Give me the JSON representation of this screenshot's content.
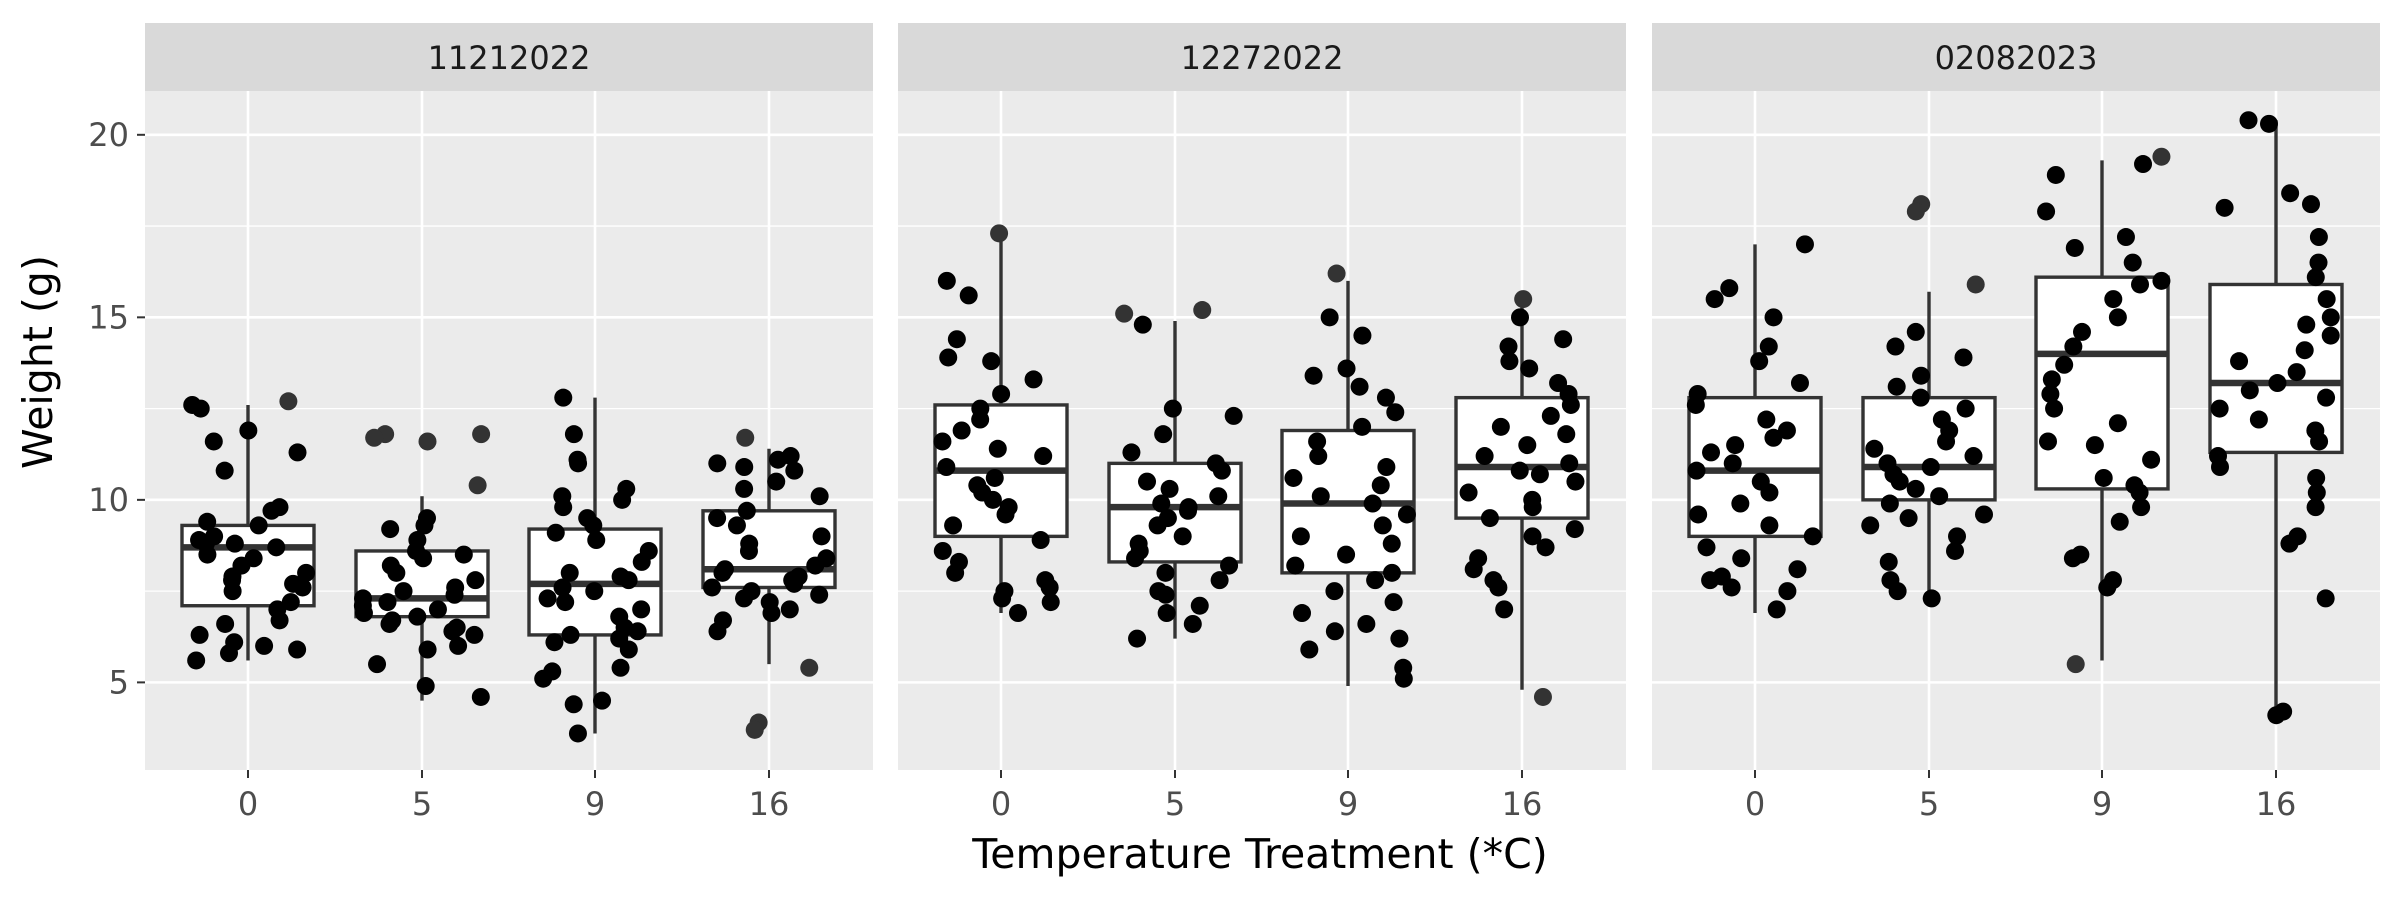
{
  "chart_data": {
    "type": "box",
    "xlabel": "Temperature Treatment (*C)",
    "ylabel": "Weight (g)",
    "ylim": [
      2.6,
      21.2
    ],
    "yticks": [
      5,
      10,
      15,
      20
    ],
    "categories": [
      "0",
      "5",
      "9",
      "16"
    ],
    "facets": [
      {
        "label": "11212022",
        "groups": [
          {
            "category": "0",
            "q1": 7.1,
            "median": 8.7,
            "q3": 9.3,
            "whisker_low": 5.6,
            "whisker_high": 12.6,
            "points": [
              12.7,
              12.6,
              12.5,
              11.9,
              11.6,
              11.3,
              10.8,
              9.8,
              9.7,
              9.4,
              9.3,
              9.0,
              8.9,
              8.8,
              8.8,
              8.7,
              8.5,
              8.4,
              8.2,
              8.0,
              7.9,
              7.8,
              7.7,
              7.6,
              7.5,
              7.2,
              7.0,
              6.7,
              6.6,
              6.3,
              6.1,
              6.0,
              5.9,
              5.8,
              5.6
            ]
          },
          {
            "category": "5",
            "q1": 6.8,
            "median": 7.3,
            "q3": 8.6,
            "whisker_low": 4.5,
            "whisker_high": 10.1,
            "points": [
              11.8,
              11.8,
              11.7,
              11.6,
              10.4,
              9.5,
              9.3,
              9.2,
              8.9,
              8.6,
              8.5,
              8.4,
              8.2,
              8.0,
              7.8,
              7.6,
              7.5,
              7.4,
              7.3,
              7.2,
              7.1,
              7.0,
              6.9,
              6.8,
              6.7,
              6.6,
              6.5,
              6.4,
              6.3,
              6.0,
              5.9,
              5.5,
              4.9,
              4.6
            ]
          },
          {
            "category": "9",
            "q1": 6.3,
            "median": 7.7,
            "q3": 9.2,
            "whisker_low": 3.6,
            "whisker_high": 12.8,
            "points": [
              12.8,
              11.8,
              11.1,
              11.0,
              10.3,
              10.1,
              10.0,
              9.8,
              9.5,
              9.3,
              9.1,
              8.9,
              8.6,
              8.3,
              8.0,
              7.9,
              7.8,
              7.6,
              7.5,
              7.3,
              7.2,
              7.0,
              6.8,
              6.5,
              6.4,
              6.3,
              6.2,
              6.1,
              5.9,
              5.4,
              5.3,
              5.1,
              4.5,
              4.4,
              3.6
            ]
          },
          {
            "category": "16",
            "q1": 7.6,
            "median": 8.1,
            "q3": 9.7,
            "whisker_low": 5.5,
            "whisker_high": 11.4,
            "points": [
              11.7,
              11.2,
              11.1,
              11.0,
              10.9,
              10.8,
              10.5,
              10.3,
              10.1,
              9.7,
              9.5,
              9.3,
              9.0,
              8.8,
              8.6,
              8.4,
              8.2,
              8.1,
              8.0,
              7.9,
              7.8,
              7.7,
              7.6,
              7.5,
              7.4,
              7.3,
              7.2,
              7.0,
              6.9,
              6.7,
              6.4,
              5.4,
              3.9,
              3.7
            ]
          }
        ]
      },
      {
        "label": "12272022",
        "groups": [
          {
            "category": "0",
            "q1": 9.0,
            "median": 10.8,
            "q3": 12.6,
            "whisker_low": 6.9,
            "whisker_high": 17.1,
            "points": [
              17.3,
              16.0,
              15.6,
              14.4,
              13.9,
              13.8,
              13.3,
              12.9,
              12.5,
              12.2,
              11.9,
              11.6,
              11.4,
              11.2,
              10.9,
              10.6,
              10.4,
              10.2,
              10.0,
              9.8,
              9.6,
              9.3,
              8.9,
              8.6,
              8.3,
              8.0,
              7.8,
              7.6,
              7.5,
              7.3,
              7.2,
              6.9
            ]
          },
          {
            "category": "5",
            "q1": 8.3,
            "median": 9.8,
            "q3": 11.0,
            "whisker_low": 6.2,
            "whisker_high": 14.9,
            "points": [
              15.2,
              15.1,
              14.8,
              12.5,
              12.3,
              11.8,
              11.3,
              11.0,
              10.8,
              10.5,
              10.3,
              10.1,
              9.9,
              9.8,
              9.7,
              9.5,
              9.3,
              9.0,
              8.8,
              8.6,
              8.4,
              8.2,
              8.0,
              7.8,
              7.5,
              7.4,
              7.1,
              6.9,
              6.6,
              6.2
            ]
          },
          {
            "category": "9",
            "q1": 8.0,
            "median": 9.9,
            "q3": 11.9,
            "whisker_low": 4.9,
            "whisker_high": 16.0,
            "points": [
              16.2,
              15.0,
              14.5,
              13.6,
              13.4,
              13.1,
              12.8,
              12.4,
              12.0,
              11.6,
              11.2,
              10.9,
              10.6,
              10.4,
              10.1,
              9.9,
              9.6,
              9.3,
              9.0,
              8.8,
              8.5,
              8.2,
              8.0,
              7.8,
              7.5,
              7.2,
              6.9,
              6.6,
              6.4,
              6.2,
              5.9,
              5.4,
              5.1
            ]
          },
          {
            "category": "16",
            "q1": 9.5,
            "median": 10.9,
            "q3": 12.8,
            "whisker_low": 4.8,
            "whisker_high": 15.3,
            "points": [
              15.5,
              15.0,
              14.4,
              14.2,
              13.8,
              13.6,
              13.2,
              12.9,
              12.6,
              12.3,
              12.0,
              11.8,
              11.5,
              11.2,
              11.0,
              10.8,
              10.7,
              10.5,
              10.2,
              10.0,
              9.8,
              9.5,
              9.2,
              9.0,
              8.7,
              8.4,
              8.1,
              7.8,
              7.6,
              7.0,
              4.6
            ]
          }
        ]
      },
      {
        "label": "02082023",
        "groups": [
          {
            "category": "0",
            "q1": 9.0,
            "median": 10.8,
            "q3": 12.8,
            "whisker_low": 6.9,
            "whisker_high": 17.0,
            "points": [
              17.0,
              15.8,
              15.5,
              15.0,
              14.2,
              13.8,
              13.2,
              12.9,
              12.6,
              12.2,
              11.9,
              11.7,
              11.5,
              11.3,
              11.0,
              10.8,
              10.5,
              10.2,
              9.9,
              9.6,
              9.3,
              9.0,
              8.7,
              8.4,
              8.1,
              7.9,
              7.8,
              7.6,
              7.5,
              7.0
            ]
          },
          {
            "category": "5",
            "q1": 10.0,
            "median": 10.9,
            "q3": 12.8,
            "whisker_low": 7.2,
            "whisker_high": 15.7,
            "points": [
              18.1,
              17.9,
              15.9,
              14.6,
              14.2,
              13.9,
              13.4,
              13.1,
              12.8,
              12.5,
              12.2,
              11.9,
              11.6,
              11.4,
              11.2,
              11.0,
              10.9,
              10.7,
              10.5,
              10.3,
              10.1,
              9.9,
              9.6,
              9.5,
              9.3,
              9.0,
              8.6,
              8.3,
              7.8,
              7.5,
              7.3
            ]
          },
          {
            "category": "9",
            "q1": 10.3,
            "median": 14.0,
            "q3": 16.1,
            "whisker_low": 5.6,
            "whisker_high": 19.3,
            "points": [
              19.4,
              19.2,
              18.9,
              17.9,
              17.2,
              16.9,
              16.5,
              16.0,
              15.9,
              15.5,
              15.0,
              14.6,
              14.2,
              13.7,
              13.3,
              12.9,
              12.5,
              12.1,
              11.6,
              11.5,
              11.1,
              10.6,
              10.4,
              10.2,
              9.8,
              9.4,
              8.5,
              8.4,
              7.8,
              7.6,
              5.5
            ]
          },
          {
            "category": "16",
            "q1": 11.3,
            "median": 13.2,
            "q3": 15.9,
            "whisker_low": 4.1,
            "whisker_high": 20.4,
            "points": [
              20.4,
              20.3,
              18.4,
              18.1,
              18.0,
              17.2,
              16.5,
              16.1,
              15.5,
              15.0,
              14.8,
              14.5,
              14.1,
              13.8,
              13.5,
              13.2,
              13.0,
              12.8,
              12.5,
              12.2,
              11.9,
              11.6,
              11.2,
              10.9,
              10.6,
              10.2,
              9.8,
              9.0,
              8.8,
              7.3,
              4.2,
              4.1
            ]
          }
        ]
      }
    ]
  }
}
